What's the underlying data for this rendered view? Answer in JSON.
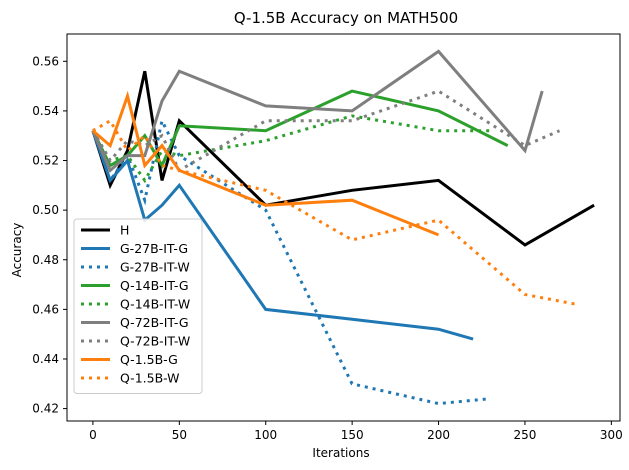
{
  "chart_data": {
    "type": "line",
    "title": "Q-1.5B Accuracy on MATH500",
    "xlabel": "Iterations",
    "ylabel": "Accuracy",
    "xlim": [
      -15,
      305
    ],
    "ylim": [
      0.415,
      0.571
    ],
    "xticks": [
      0,
      50,
      100,
      150,
      200,
      250,
      300
    ],
    "yticks": [
      0.42,
      0.44,
      0.46,
      0.48,
      0.5,
      0.52,
      0.54,
      0.56
    ],
    "ytick_labels": [
      "0.42",
      "0.44",
      "0.46",
      "0.48",
      "0.50",
      "0.52",
      "0.54",
      "0.56"
    ],
    "grid": false,
    "legend_position": "lower-left",
    "series": [
      {
        "name": "H",
        "color": "#000000",
        "style": "solid",
        "x": [
          0,
          10,
          20,
          30,
          40,
          50,
          100,
          150,
          200,
          250,
          290
        ],
        "y": [
          0.532,
          0.51,
          0.524,
          0.556,
          0.512,
          0.536,
          0.502,
          0.508,
          0.512,
          0.486,
          0.502
        ]
      },
      {
        "name": "G-27B-IT-G",
        "color": "#1f77b4",
        "style": "solid",
        "x": [
          0,
          10,
          20,
          30,
          40,
          50,
          100,
          150,
          200,
          220
        ],
        "y": [
          0.532,
          0.512,
          0.52,
          0.496,
          0.502,
          0.51,
          0.46,
          0.456,
          0.452,
          0.448
        ]
      },
      {
        "name": "G-27B-IT-W",
        "color": "#1f77b4",
        "style": "dotted",
        "x": [
          0,
          10,
          20,
          30,
          40,
          50,
          100,
          150,
          200,
          230
        ],
        "y": [
          0.532,
          0.512,
          0.522,
          0.504,
          0.536,
          0.522,
          0.5,
          0.43,
          0.422,
          0.424
        ]
      },
      {
        "name": "Q-14B-IT-G",
        "color": "#2ca02c",
        "style": "solid",
        "x": [
          0,
          10,
          20,
          30,
          40,
          50,
          100,
          150,
          200,
          240
        ],
        "y": [
          0.532,
          0.518,
          0.522,
          0.53,
          0.518,
          0.534,
          0.532,
          0.548,
          0.54,
          0.526
        ]
      },
      {
        "name": "Q-14B-IT-W",
        "color": "#2ca02c",
        "style": "dotted",
        "x": [
          0,
          10,
          20,
          30,
          40,
          50,
          100,
          150,
          200,
          230
        ],
        "y": [
          0.532,
          0.52,
          0.522,
          0.512,
          0.524,
          0.522,
          0.528,
          0.538,
          0.532,
          0.532
        ]
      },
      {
        "name": "Q-72B-IT-G",
        "color": "#7f7f7f",
        "style": "solid",
        "x": [
          0,
          10,
          20,
          30,
          40,
          50,
          100,
          150,
          200,
          250,
          260
        ],
        "y": [
          0.532,
          0.516,
          0.522,
          0.522,
          0.544,
          0.556,
          0.542,
          0.54,
          0.564,
          0.524,
          0.548
        ]
      },
      {
        "name": "Q-72B-IT-W",
        "color": "#7f7f7f",
        "style": "dotted",
        "x": [
          0,
          10,
          20,
          30,
          40,
          50,
          100,
          150,
          200,
          250,
          270
        ],
        "y": [
          0.532,
          0.52,
          0.528,
          0.526,
          0.53,
          0.516,
          0.536,
          0.536,
          0.548,
          0.526,
          0.532
        ]
      },
      {
        "name": "Q-1.5B-G",
        "color": "#ff7f0e",
        "style": "solid",
        "x": [
          0,
          10,
          20,
          30,
          40,
          50,
          100,
          150,
          200
        ],
        "y": [
          0.532,
          0.526,
          0.546,
          0.518,
          0.526,
          0.516,
          0.502,
          0.504,
          0.49
        ]
      },
      {
        "name": "Q-1.5B-W",
        "color": "#ff7f0e",
        "style": "dotted",
        "x": [
          0,
          10,
          20,
          30,
          40,
          50,
          100,
          150,
          200,
          250,
          280
        ],
        "y": [
          0.532,
          0.536,
          0.524,
          0.53,
          0.518,
          0.516,
          0.508,
          0.488,
          0.496,
          0.466,
          0.462
        ]
      }
    ]
  }
}
